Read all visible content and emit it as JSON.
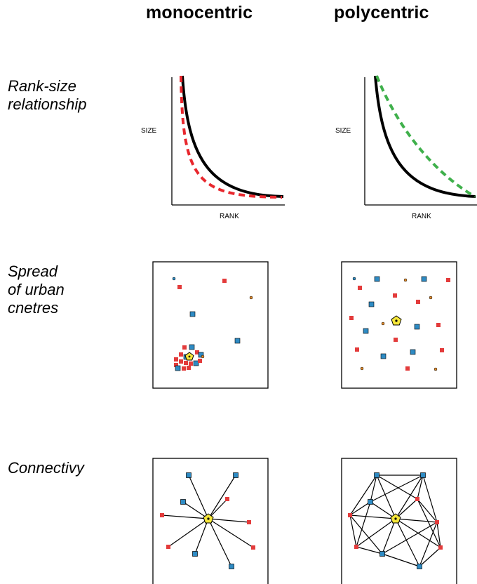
{
  "headers": {
    "left": "monocentric",
    "right": "polycentric"
  },
  "rows": {
    "rank_size": "Rank-size\nrelationship",
    "spread": "Spread\nof urban\ncnetres",
    "connectivity": "Connectivy"
  },
  "axes": {
    "size_label": "SIZE",
    "rank_label": "RANK"
  },
  "colors": {
    "solid_curve": "#000000",
    "mono_dashed": "#e8272d",
    "poly_dashed": "#3fb04b",
    "red_node": "#e33b3b",
    "blue_node": "#2e8bc4",
    "orange_dot": "#e08a2c",
    "center_node": "#f5e63a"
  },
  "legend_icons": {
    "blue_node": "blue-square-node-icon",
    "red_node": "red-square-node-icon",
    "center_node": "yellow-pentagon-center-icon",
    "orange_node": "orange-dot-node-icon"
  }
}
